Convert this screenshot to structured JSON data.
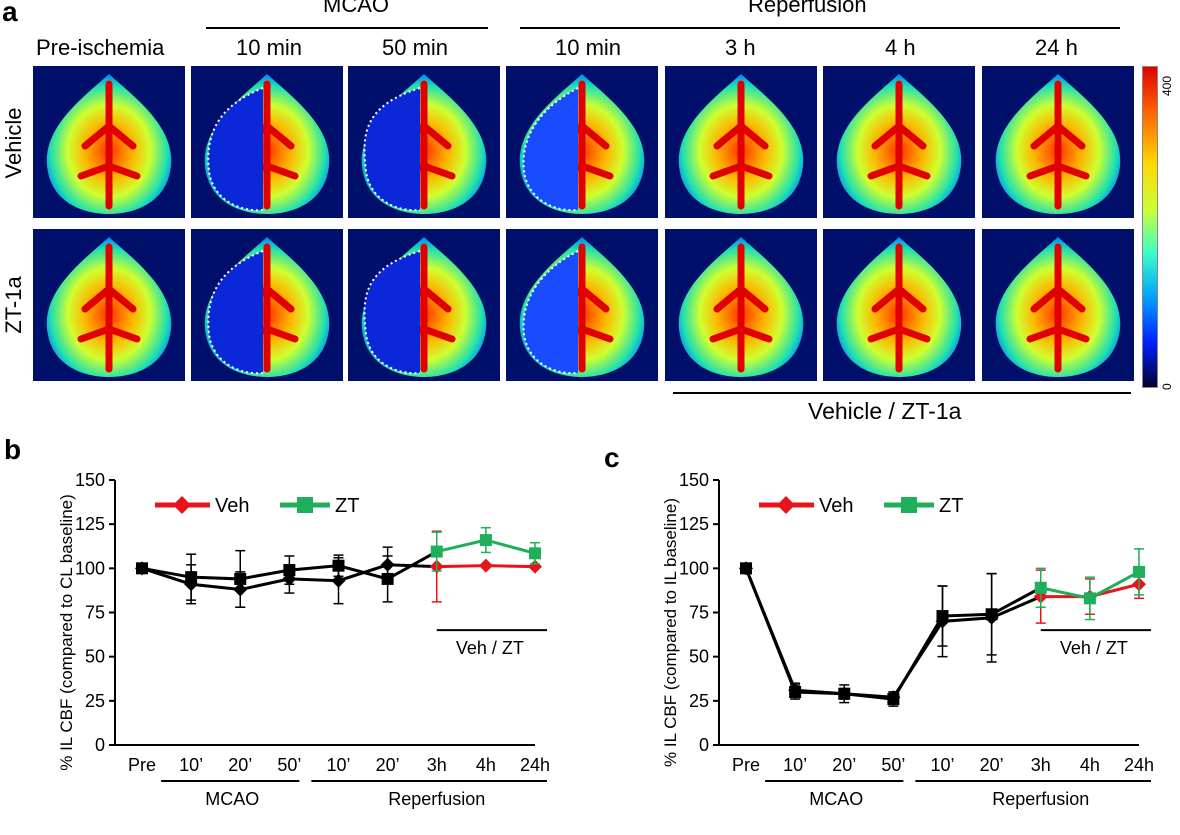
{
  "panel_a": {
    "letter": "a",
    "group_headers": {
      "mcao": "MCAO",
      "reperfusion": "Reperfusion"
    },
    "column_labels": [
      "Pre-ischemia",
      "10 min",
      "50 min",
      "10 min",
      "3 h",
      "4 h",
      "24 h"
    ],
    "row_labels": [
      "Vehicle",
      "ZT-1a"
    ],
    "colorbar": {
      "max": "400",
      "min": "0"
    },
    "treatment_label": "Vehicle / ZT-1a"
  },
  "panel_b": {
    "letter": "b",
    "legend": {
      "veh": "Veh",
      "zt": "ZT"
    },
    "treatment_label": "Veh / ZT",
    "group_labels": {
      "mcao": "MCAO",
      "reperfusion": "Reperfusion"
    }
  },
  "panel_c": {
    "letter": "c",
    "legend": {
      "veh": "Veh",
      "zt": "ZT"
    },
    "treatment_label": "Veh / ZT",
    "group_labels": {
      "mcao": "MCAO",
      "reperfusion": "Reperfusion"
    }
  },
  "colors": {
    "veh": "#e8141c",
    "zt": "#1fae5a",
    "baseline": "#000000"
  },
  "chart_data": [
    {
      "type": "line",
      "ylabel": "% IL CBF (compared to CL baseline)",
      "ylim": [
        0,
        150
      ],
      "yticks": [
        0,
        25,
        50,
        75,
        100,
        125,
        150
      ],
      "categories": [
        "Pre",
        "10’",
        "20’",
        "50’",
        "10’",
        "20’",
        "3h",
        "4h",
        "24h"
      ],
      "series": [
        {
          "name": "Veh",
          "values": [
            100,
            91,
            88,
            94,
            93,
            102,
            101,
            101.5,
            101
          ],
          "err": [
            0,
            11,
            10,
            8,
            13,
            10,
            20,
            0,
            0
          ]
        },
        {
          "name": "ZT",
          "values": [
            100,
            95,
            94,
            99,
            101.5,
            94,
            109.5,
            116,
            108.5
          ],
          "err": [
            0,
            13,
            16,
            8,
            6,
            13,
            11,
            7,
            6
          ]
        }
      ]
    },
    {
      "type": "line",
      "ylabel": "% IL CBF (compared to IL baseline)",
      "ylim": [
        0,
        150
      ],
      "yticks": [
        0,
        25,
        50,
        75,
        100,
        125,
        150
      ],
      "categories": [
        "Pre",
        "10’",
        "20’",
        "50’",
        "10’",
        "20’",
        "3h",
        "4h",
        "24h"
      ],
      "series": [
        {
          "name": "Veh",
          "values": [
            100,
            31,
            29,
            27,
            70,
            72,
            84,
            84,
            91
          ],
          "err": [
            0,
            4,
            3,
            3,
            20,
            25,
            15,
            10,
            8
          ]
        },
        {
          "name": "ZT",
          "values": [
            100,
            30,
            29,
            26,
            73,
            74,
            89,
            83,
            98
          ],
          "err": [
            0,
            4,
            5,
            4,
            17,
            23,
            11,
            12,
            13
          ]
        }
      ]
    }
  ]
}
